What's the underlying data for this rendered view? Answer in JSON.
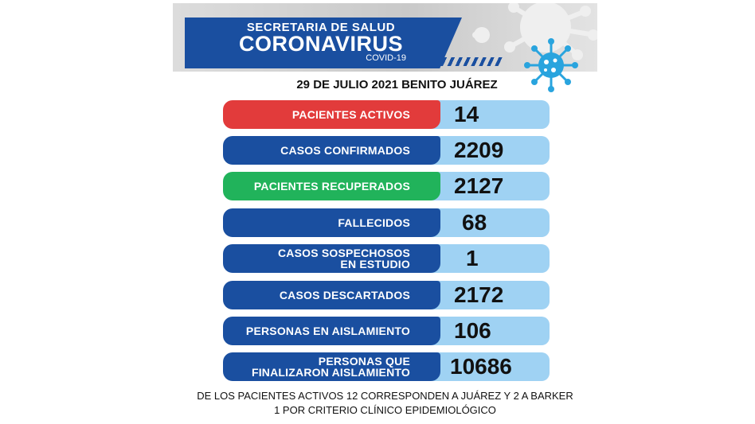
{
  "header": {
    "line1": "SECRETARIA DE SALUD",
    "line2": "CORONAVIRUS",
    "line3": "COVID-19",
    "date_line": "29 DE JULIO 2021 BENITO JUÁREZ",
    "virus_icon": "coronavirus-icon",
    "colors": {
      "primary_blue": "#1a4fa0",
      "light_blue": "#9fd2f3",
      "red": "#e23b3b",
      "green": "#21b35b",
      "virus_blue": "#29a4de"
    }
  },
  "stats": [
    {
      "label_1": "PACIENTES ACTIVOS",
      "label_2": "",
      "value": "14",
      "color": "red"
    },
    {
      "label_1": "CASOS CONFIRMADOS",
      "label_2": "",
      "value": "2209",
      "color": "blue"
    },
    {
      "label_1": "PACIENTES RECUPERADOS",
      "label_2": "",
      "value": "2127",
      "color": "green"
    },
    {
      "label_1": "FALLECIDOS",
      "label_2": "",
      "value": "68",
      "color": "blue"
    },
    {
      "label_1": "CASOS SOSPECHOSOS",
      "label_2": "EN ESTUDIO",
      "value": "1",
      "color": "blue"
    },
    {
      "label_1": "CASOS DESCARTADOS",
      "label_2": "",
      "value": "2172",
      "color": "blue"
    },
    {
      "label_1": "PERSONAS EN AISLAMIENTO",
      "label_2": "",
      "value": "106",
      "color": "blue"
    },
    {
      "label_1": "PERSONAS QUE",
      "label_2": "FINALIZARON AISLAMIENTO",
      "value": "10686",
      "color": "blue"
    }
  ],
  "footer": {
    "line1": "DE LOS PACIENTES ACTIVOS  12 CORRESPONDEN A JUÁREZ Y 2 A BARKER",
    "line2": "1 POR CRITERIO CLÍNICO EPIDEMIOLÓGICO"
  }
}
